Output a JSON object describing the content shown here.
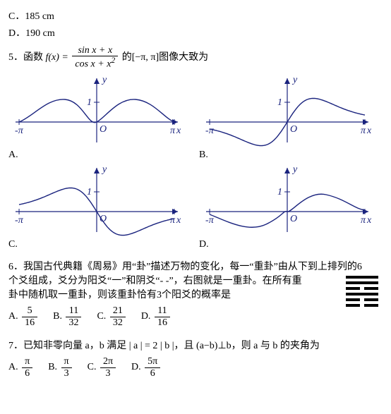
{
  "q4": {
    "optionC": "C．185 cm",
    "optionD": "D．190 cm"
  },
  "q5": {
    "stem_prefix": "5．函数 ",
    "fn_left": "f(x) = ",
    "frac_num": "sin x + x",
    "frac_den": "cos x + x",
    "frac_den_sup": "2",
    "stem_suffix": " 的[−π, π]图像大致为",
    "graph": {
      "stroke": "#1a237e",
      "stroke_width": 1.4,
      "axis_color": "#1a237e",
      "font": "italic 14px 'Comic Sans MS', cursive",
      "labels": {
        "y": "y",
        "x": "x",
        "O": "O",
        "one": "1",
        "negpi": "-π",
        "pi": "π"
      }
    },
    "optA": "A.",
    "optB": "B.",
    "optC": "C.",
    "optD": "D."
  },
  "q6": {
    "stem_l1": "6．我国古代典籍《周易》用“卦”描述万物的变化，每一“重卦”由从下到上排列的6",
    "stem_l2": "个爻组成，爻分为阳爻“一”和阴爻“- -”，右图就是一重卦。在所有重",
    "stem_l3": "卦中随机取一重卦，则该重卦恰有3个阳爻的概率是",
    "hexagram_pattern": [
      "yang",
      "yang",
      "yin",
      "yang",
      "yin",
      "yin"
    ],
    "options": [
      {
        "label": "A.",
        "num": "5",
        "den": "16"
      },
      {
        "label": "B.",
        "num": "11",
        "den": "32"
      },
      {
        "label": "C.",
        "num": "21",
        "den": "32"
      },
      {
        "label": "D.",
        "num": "11",
        "den": "16"
      }
    ]
  },
  "q7": {
    "stem": "7．已知非零向量 a，b 满足 | a | = 2 | b |，且 (a−b)⊥b，则 a 与 b 的夹角为",
    "options": [
      {
        "label": "A.",
        "num": "π",
        "den": "6"
      },
      {
        "label": "B.",
        "num": "π",
        "den": "3"
      },
      {
        "label": "C.",
        "num": "2π",
        "den": "3"
      },
      {
        "label": "D.",
        "num": "5π",
        "den": "6"
      }
    ]
  }
}
